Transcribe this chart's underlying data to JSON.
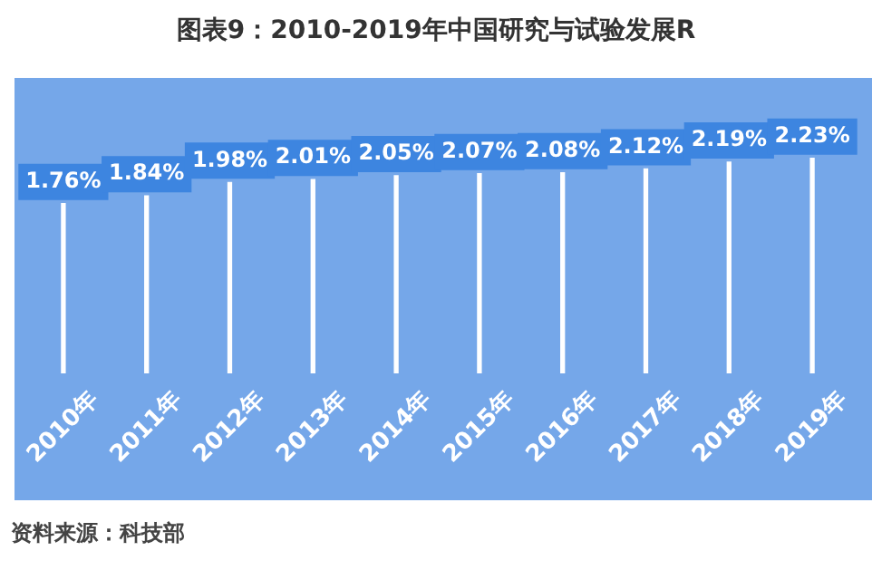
{
  "chart_data": {
    "type": "bar",
    "title": "图表9：2010-2019年中国研究与试验发展R",
    "categories": [
      "2010年",
      "2011年",
      "2012年",
      "2013年",
      "2014年",
      "2015年",
      "2016年",
      "2017年",
      "2018年",
      "2019年"
    ],
    "values": [
      1.76,
      1.84,
      1.98,
      2.01,
      2.05,
      2.07,
      2.08,
      2.12,
      2.19,
      2.23
    ],
    "value_labels": [
      "1.76%",
      "1.84%",
      "1.98%",
      "2.01%",
      "2.05%",
      "2.07%",
      "2.08%",
      "2.12%",
      "2.19%",
      "2.23%"
    ],
    "color": "#ffffff",
    "grid": false,
    "legend": false,
    "tick_labels": "x",
    "annotations": [
      "资料来源：科技部"
    ]
  }
}
